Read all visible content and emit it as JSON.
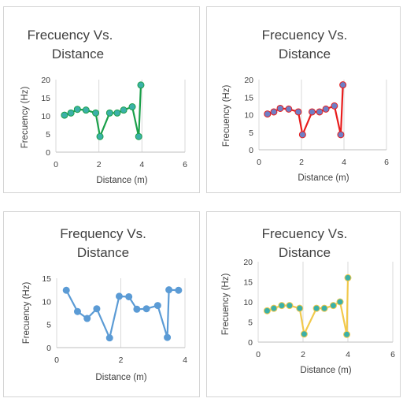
{
  "chart_data": [
    {
      "type": "scatter",
      "title_line1": "Frecuency Vs.",
      "title_line2": "Distance",
      "xlabel": "Distance (m)",
      "ylabel": "Frecuency (Hz)",
      "xlim": [
        0,
        6
      ],
      "ylim": [
        0,
        20
      ],
      "xticks": [
        0,
        2,
        4,
        6
      ],
      "yticks": [
        0,
        5,
        10,
        15,
        20
      ],
      "grid": "vertical",
      "line_color": "#1aa04a",
      "marker_color": "#3bb0a8",
      "series": [
        {
          "x": [
            0.4,
            0.7,
            1.0,
            1.4,
            1.85,
            2.05,
            2.5,
            2.85,
            3.15,
            3.55,
            3.85,
            3.95
          ],
          "y": [
            10.2,
            10.8,
            11.8,
            11.6,
            10.8,
            4.3,
            10.8,
            10.8,
            11.6,
            12.5,
            4.3,
            18.5
          ]
        }
      ]
    },
    {
      "type": "scatter",
      "title_line1": "Frecuency Vs.",
      "title_line2": "Distance",
      "xlabel": "Distance (m)",
      "ylabel": "Frecuency (Hz)",
      "xlim": [
        0,
        6
      ],
      "ylim": [
        0,
        20
      ],
      "xticks": [
        0,
        2,
        4,
        6
      ],
      "yticks": [
        0,
        5,
        10,
        15,
        20
      ],
      "grid": "vertical",
      "line_color": "#e81c1c",
      "marker_color": "#6e7fc6",
      "series": [
        {
          "x": [
            0.4,
            0.7,
            1.0,
            1.4,
            1.85,
            2.05,
            2.5,
            2.85,
            3.15,
            3.55,
            3.85,
            3.95
          ],
          "y": [
            10.2,
            10.8,
            11.8,
            11.6,
            10.8,
            4.3,
            10.8,
            10.8,
            11.6,
            12.5,
            4.3,
            18.5
          ]
        }
      ]
    },
    {
      "type": "scatter",
      "title_line1": "Frequency Vs.",
      "title_line2": "Distance",
      "xlabel": "Distance (m)",
      "ylabel": "Frecuency (Hz)",
      "xlim": [
        0,
        4
      ],
      "ylim": [
        0,
        15
      ],
      "xticks": [
        0,
        2,
        4
      ],
      "yticks": [
        0,
        5,
        10,
        15
      ],
      "grid": "vertical",
      "line_color": "#5b9bd5",
      "marker_color": "#5b9bd5",
      "series": [
        {
          "x": [
            0.3,
            0.65,
            0.95,
            1.25,
            1.65,
            1.95,
            2.25,
            2.5,
            2.8,
            3.15,
            3.45,
            3.5,
            3.8
          ],
          "y": [
            12.4,
            7.8,
            6.3,
            8.4,
            2.1,
            11.1,
            11.0,
            8.3,
            8.4,
            9.1,
            2.2,
            12.5,
            12.4
          ]
        }
      ]
    },
    {
      "type": "scatter",
      "title_line1": "Frecuency Vs.",
      "title_line2": "Distance",
      "xlabel": "Distance (m)",
      "ylabel": "Frecuency (Hz)",
      "xlim": [
        0,
        6
      ],
      "ylim": [
        0,
        20
      ],
      "xticks": [
        0,
        2,
        4,
        6
      ],
      "yticks": [
        0,
        5,
        10,
        15,
        20
      ],
      "grid": "vertical",
      "line_color": "#f2c94c",
      "marker_color": "#3bb0a8",
      "series": [
        {
          "x": [
            0.4,
            0.7,
            1.05,
            1.4,
            1.85,
            2.05,
            2.6,
            2.95,
            3.35,
            3.65,
            3.95,
            4.0
          ],
          "y": [
            7.8,
            8.4,
            9.1,
            9.1,
            8.4,
            2.0,
            8.4,
            8.4,
            9.1,
            10.0,
            1.9,
            16.0
          ]
        }
      ]
    }
  ]
}
